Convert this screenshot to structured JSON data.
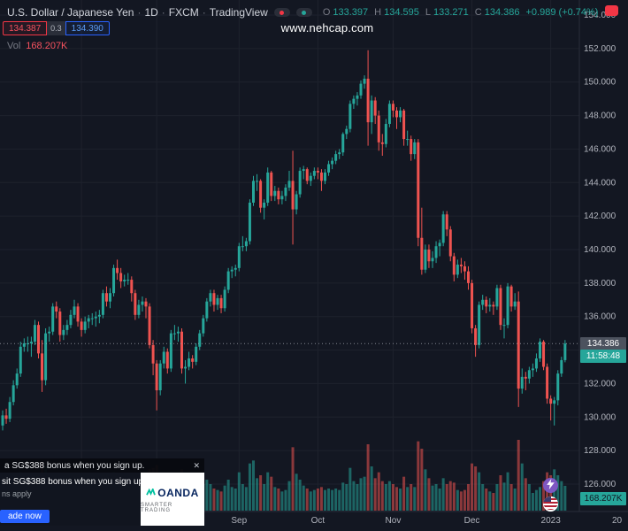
{
  "header": {
    "title": "U.S. Dollar / Japanese Yen",
    "dot": "·",
    "interval": "1D",
    "exchange": "FXCM",
    "brand": "TradingView",
    "ohlc": {
      "o_label": "O",
      "o_value": "133.397",
      "h_label": "H",
      "h_value": "134.595",
      "l_label": "L",
      "l_value": "133.271",
      "c_label": "C",
      "c_value": "134.386",
      "change": "+0.989 (+0.74%)"
    },
    "sell_price": "134.387",
    "spread": "0.3",
    "buy_price": "134.390",
    "vol_label": "Vol",
    "vol_value": "168.207K"
  },
  "watermark": "www.nehcap.com",
  "price_scale": {
    "labels": [
      "154.000",
      "152.000",
      "150.000",
      "148.000",
      "146.000",
      "144.000",
      "142.000",
      "140.000",
      "138.000",
      "136.000",
      "134.000",
      "132.000",
      "130.000",
      "128.000",
      "126.000"
    ],
    "last_price": "134.386",
    "countdown": "11:58:48",
    "volume_badge": "168.207K"
  },
  "time_scale": {
    "months": [
      {
        "label": "Sep",
        "index": 66
      },
      {
        "label": "Oct",
        "index": 88
      },
      {
        "label": "Nov",
        "index": 109
      },
      {
        "label": "Dec",
        "index": 131
      },
      {
        "label": "2023",
        "index": 153
      }
    ],
    "edge_label": "20"
  },
  "ad": {
    "headline": "a SG$388 bonus when you sign up.",
    "close_label": "✕",
    "body_line": "sit SG$388 bonus when you sign up.",
    "terms_line": "ns apply",
    "cta_label": "ade now",
    "brand": "OANDA",
    "brand_tagline": "SMARTER TRADING"
  },
  "colors": {
    "background": "#131722",
    "up": "#26a69a",
    "down": "#ef5350",
    "vol_up": "rgba(38,166,154,0.55)",
    "vol_down": "rgba(239,83,80,0.55)",
    "grid": "#1e222d",
    "axis_line": "#2a2e39",
    "axis_text": "#b2b5be",
    "text_muted": "#787b86",
    "sell_red": "#f23645",
    "buy_blue": "#2962ff",
    "accent_purple": "#7e57c2"
  },
  "chart_data": {
    "type": "candlestick",
    "symbol": "USD/JPY",
    "interval": "1D",
    "price_axis": {
      "top_price": 154,
      "bottom_price": 126,
      "step": 2
    },
    "last_price": 134.386,
    "grid_month_indices": [
      22,
      43,
      66,
      88,
      109,
      131,
      153
    ],
    "columns": [
      "open",
      "high",
      "low",
      "close",
      "volume_k"
    ],
    "candles": [
      [
        129.5,
        130.4,
        129.2,
        130.1,
        140
      ],
      [
        130.1,
        130.5,
        129.6,
        129.9,
        120
      ],
      [
        129.9,
        131.2,
        129.7,
        130.9,
        150
      ],
      [
        130.9,
        132.2,
        130.7,
        131.9,
        180
      ],
      [
        131.9,
        132.9,
        131.7,
        132.6,
        170
      ],
      [
        132.6,
        134.5,
        132.4,
        134.2,
        260
      ],
      [
        134.2,
        134.7,
        133.9,
        134.4,
        180
      ],
      [
        134.4,
        134.8,
        133.9,
        134.4,
        150
      ],
      [
        134.4,
        134.8,
        133.6,
        134.5,
        160
      ],
      [
        134.5,
        135.8,
        134.3,
        135.5,
        210
      ],
      [
        135.5,
        135.7,
        133.5,
        133.8,
        240
      ],
      [
        133.8,
        134.6,
        131.5,
        132.2,
        330
      ],
      [
        132.2,
        135.3,
        131.9,
        135.0,
        300
      ],
      [
        135.0,
        135.4,
        134.5,
        135.1,
        170
      ],
      [
        135.1,
        136.8,
        134.9,
        136.6,
        220
      ],
      [
        136.6,
        136.9,
        135.9,
        136.3,
        160
      ],
      [
        136.3,
        136.5,
        134.5,
        134.9,
        190
      ],
      [
        134.9,
        135.5,
        134.6,
        135.2,
        140
      ],
      [
        135.2,
        135.8,
        134.9,
        135.5,
        130
      ],
      [
        135.5,
        136.4,
        135.3,
        136.1,
        150
      ],
      [
        136.1,
        137.0,
        135.9,
        136.6,
        170
      ],
      [
        136.6,
        136.8,
        135.4,
        135.7,
        180
      ],
      [
        135.7,
        135.9,
        134.8,
        135.2,
        150
      ],
      [
        135.2,
        136.0,
        135.0,
        135.7,
        120
      ],
      [
        135.7,
        136.1,
        135.3,
        135.9,
        110
      ],
      [
        135.9,
        136.2,
        135.5,
        135.9,
        100
      ],
      [
        135.9,
        136.3,
        135.4,
        136.0,
        120
      ],
      [
        136.0,
        136.4,
        135.6,
        136.1,
        130
      ],
      [
        136.1,
        137.6,
        135.9,
        137.4,
        200
      ],
      [
        137.4,
        137.8,
        136.6,
        136.9,
        160
      ],
      [
        136.9,
        137.7,
        136.5,
        137.4,
        170
      ],
      [
        137.4,
        139.1,
        137.2,
        138.9,
        260
      ],
      [
        138.9,
        139.4,
        138.2,
        138.6,
        190
      ],
      [
        138.6,
        138.9,
        137.7,
        138.1,
        150
      ],
      [
        138.1,
        138.5,
        137.8,
        138.2,
        120
      ],
      [
        138.2,
        138.6,
        137.9,
        138.2,
        110
      ],
      [
        138.2,
        138.4,
        136.9,
        137.4,
        170
      ],
      [
        137.4,
        137.6,
        135.8,
        136.1,
        210
      ],
      [
        136.1,
        137.0,
        135.9,
        136.7,
        140
      ],
      [
        136.7,
        137.2,
        136.3,
        136.9,
        130
      ],
      [
        136.9,
        137.1,
        135.9,
        136.6,
        160
      ],
      [
        136.6,
        136.8,
        134.1,
        134.3,
        280
      ],
      [
        134.3,
        134.6,
        132.5,
        133.2,
        290
      ],
      [
        133.2,
        133.4,
        130.4,
        131.6,
        310
      ],
      [
        131.6,
        133.4,
        131.3,
        133.2,
        240
      ],
      [
        133.2,
        134.2,
        132.9,
        133.9,
        180
      ],
      [
        133.9,
        134.1,
        132.6,
        132.9,
        190
      ],
      [
        132.9,
        135.2,
        132.7,
        135.0,
        230
      ],
      [
        135.0,
        135.5,
        134.6,
        135.0,
        150
      ],
      [
        135.0,
        135.4,
        134.5,
        135.1,
        140
      ],
      [
        135.1,
        135.3,
        132.6,
        132.9,
        280
      ],
      [
        132.9,
        133.4,
        132.0,
        133.0,
        190
      ],
      [
        133.0,
        133.9,
        132.8,
        133.5,
        140
      ],
      [
        133.5,
        133.7,
        132.9,
        133.3,
        120
      ],
      [
        133.3,
        134.4,
        133.1,
        134.2,
        150
      ],
      [
        134.2,
        135.2,
        134.0,
        135.0,
        160
      ],
      [
        135.0,
        136.1,
        134.8,
        135.9,
        180
      ],
      [
        135.9,
        137.1,
        135.7,
        136.9,
        210
      ],
      [
        136.9,
        137.6,
        136.6,
        137.4,
        180
      ],
      [
        137.4,
        137.6,
        136.3,
        136.7,
        150
      ],
      [
        136.7,
        137.3,
        136.4,
        137.1,
        140
      ],
      [
        137.1,
        137.3,
        136.2,
        136.5,
        130
      ],
      [
        136.5,
        137.8,
        136.3,
        137.6,
        170
      ],
      [
        137.6,
        138.9,
        137.4,
        138.7,
        210
      ],
      [
        138.7,
        139.0,
        138.3,
        138.8,
        160
      ],
      [
        138.8,
        139.1,
        138.4,
        138.9,
        150
      ],
      [
        138.9,
        140.4,
        138.7,
        140.2,
        260
      ],
      [
        140.2,
        140.8,
        139.9,
        140.2,
        180
      ],
      [
        140.2,
        140.7,
        139.9,
        140.5,
        160
      ],
      [
        140.5,
        143.0,
        140.3,
        142.8,
        320
      ],
      [
        142.8,
        144.4,
        142.6,
        144.1,
        340
      ],
      [
        144.1,
        144.5,
        143.5,
        144.1,
        220
      ],
      [
        144.1,
        144.2,
        142.2,
        142.5,
        240
      ],
      [
        142.5,
        143.0,
        141.8,
        142.8,
        180
      ],
      [
        142.8,
        144.9,
        142.6,
        144.6,
        260
      ],
      [
        144.6,
        144.7,
        142.9,
        143.2,
        230
      ],
      [
        143.2,
        143.8,
        142.9,
        143.5,
        160
      ],
      [
        143.5,
        143.7,
        142.7,
        143.0,
        150
      ],
      [
        143.0,
        143.5,
        142.7,
        143.2,
        130
      ],
      [
        143.2,
        143.9,
        142.9,
        143.7,
        140
      ],
      [
        143.7,
        144.7,
        143.5,
        144.1,
        200
      ],
      [
        144.1,
        145.9,
        140.3,
        142.4,
        430
      ],
      [
        142.4,
        143.5,
        142.1,
        143.3,
        250
      ],
      [
        143.3,
        144.9,
        143.1,
        144.7,
        210
      ],
      [
        144.7,
        145.0,
        144.2,
        144.8,
        170
      ],
      [
        144.8,
        144.9,
        143.9,
        144.1,
        150
      ],
      [
        144.1,
        144.6,
        143.8,
        144.4,
        130
      ],
      [
        144.4,
        144.9,
        144.2,
        144.7,
        140
      ],
      [
        144.7,
        144.9,
        144.2,
        144.6,
        150
      ],
      [
        144.6,
        144.8,
        143.5,
        144.1,
        160
      ],
      [
        144.1,
        144.8,
        143.9,
        144.6,
        140
      ],
      [
        144.6,
        145.3,
        144.4,
        145.1,
        150
      ],
      [
        145.1,
        145.5,
        144.8,
        145.3,
        140
      ],
      [
        145.3,
        145.9,
        145.1,
        145.7,
        150
      ],
      [
        145.7,
        146.0,
        145.4,
        145.8,
        140
      ],
      [
        145.8,
        147.0,
        145.6,
        146.9,
        190
      ],
      [
        146.9,
        147.4,
        146.6,
        147.2,
        180
      ],
      [
        147.2,
        148.9,
        147.0,
        148.7,
        290
      ],
      [
        148.7,
        149.2,
        148.4,
        149.0,
        200
      ],
      [
        149.0,
        149.4,
        148.6,
        149.2,
        180
      ],
      [
        149.2,
        150.1,
        149.0,
        149.9,
        220
      ],
      [
        149.9,
        150.4,
        149.6,
        150.2,
        230
      ],
      [
        150.2,
        151.9,
        146.2,
        147.6,
        450
      ],
      [
        147.6,
        149.2,
        146.9,
        148.9,
        300
      ],
      [
        148.9,
        149.1,
        147.5,
        148.0,
        220
      ],
      [
        148.0,
        148.3,
        145.9,
        146.4,
        260
      ],
      [
        146.4,
        146.9,
        145.6,
        146.3,
        200
      ],
      [
        146.3,
        147.8,
        146.1,
        147.5,
        180
      ],
      [
        147.5,
        148.9,
        147.3,
        148.7,
        200
      ],
      [
        148.7,
        148.9,
        147.9,
        148.3,
        180
      ],
      [
        148.3,
        148.5,
        147.2,
        147.9,
        160
      ],
      [
        147.9,
        148.5,
        147.6,
        148.3,
        150
      ],
      [
        148.3,
        148.4,
        146.2,
        146.6,
        230
      ],
      [
        146.6,
        147.1,
        146.2,
        146.6,
        160
      ],
      [
        146.6,
        146.8,
        145.3,
        145.7,
        180
      ],
      [
        145.7,
        146.6,
        145.4,
        146.4,
        160
      ],
      [
        146.4,
        146.6,
        140.2,
        140.7,
        470
      ],
      [
        140.7,
        142.5,
        138.5,
        138.8,
        420
      ],
      [
        138.8,
        140.3,
        138.6,
        140.0,
        280
      ],
      [
        140.0,
        140.3,
        138.9,
        139.3,
        220
      ],
      [
        139.3,
        139.9,
        138.9,
        139.5,
        170
      ],
      [
        139.5,
        140.5,
        139.2,
        140.2,
        180
      ],
      [
        140.2,
        140.6,
        139.6,
        140.4,
        150
      ],
      [
        140.4,
        142.3,
        140.2,
        142.1,
        220
      ],
      [
        142.1,
        142.3,
        140.8,
        141.2,
        180
      ],
      [
        141.2,
        141.4,
        139.3,
        139.6,
        200
      ],
      [
        139.6,
        139.8,
        138.1,
        138.5,
        190
      ],
      [
        138.5,
        139.4,
        138.3,
        139.1,
        140
      ],
      [
        139.1,
        139.5,
        138.6,
        139.0,
        130
      ],
      [
        139.0,
        139.3,
        138.2,
        138.7,
        140
      ],
      [
        138.7,
        139.0,
        137.6,
        138.0,
        180
      ],
      [
        138.0,
        138.2,
        135.0,
        135.3,
        320
      ],
      [
        135.3,
        135.5,
        133.6,
        134.3,
        300
      ],
      [
        134.3,
        136.9,
        134.1,
        136.7,
        260
      ],
      [
        136.7,
        137.3,
        136.4,
        137.0,
        180
      ],
      [
        137.0,
        137.2,
        136.2,
        136.6,
        150
      ],
      [
        136.6,
        137.1,
        136.3,
        136.7,
        130
      ],
      [
        136.7,
        136.9,
        136.1,
        136.6,
        120
      ],
      [
        136.6,
        137.9,
        136.4,
        137.7,
        180
      ],
      [
        137.7,
        137.9,
        135.2,
        135.5,
        240
      ],
      [
        135.5,
        135.9,
        134.7,
        135.5,
        190
      ],
      [
        135.5,
        138.0,
        135.3,
        137.8,
        260
      ],
      [
        137.8,
        137.9,
        136.3,
        136.6,
        180
      ],
      [
        136.6,
        137.4,
        136.4,
        136.9,
        150
      ],
      [
        136.9,
        137.5,
        130.6,
        131.7,
        480
      ],
      [
        131.7,
        132.9,
        131.4,
        132.4,
        320
      ],
      [
        132.4,
        132.7,
        131.6,
        132.3,
        220
      ],
      [
        132.3,
        133.0,
        132.0,
        132.8,
        180
      ],
      [
        132.8,
        133.2,
        132.4,
        132.9,
        120
      ],
      [
        132.9,
        133.8,
        132.7,
        133.5,
        140
      ],
      [
        133.5,
        134.7,
        133.3,
        134.5,
        160
      ],
      [
        134.5,
        134.6,
        132.8,
        133.0,
        200
      ],
      [
        133.0,
        133.2,
        130.8,
        131.1,
        260
      ],
      [
        131.1,
        131.3,
        129.8,
        130.8,
        240
      ],
      [
        130.8,
        131.2,
        129.5,
        131.0,
        280
      ],
      [
        131.0,
        132.8,
        130.7,
        132.6,
        240
      ],
      [
        132.6,
        133.6,
        132.4,
        133.4,
        200
      ],
      [
        133.4,
        134.6,
        133.27,
        134.39,
        168.2
      ]
    ]
  }
}
